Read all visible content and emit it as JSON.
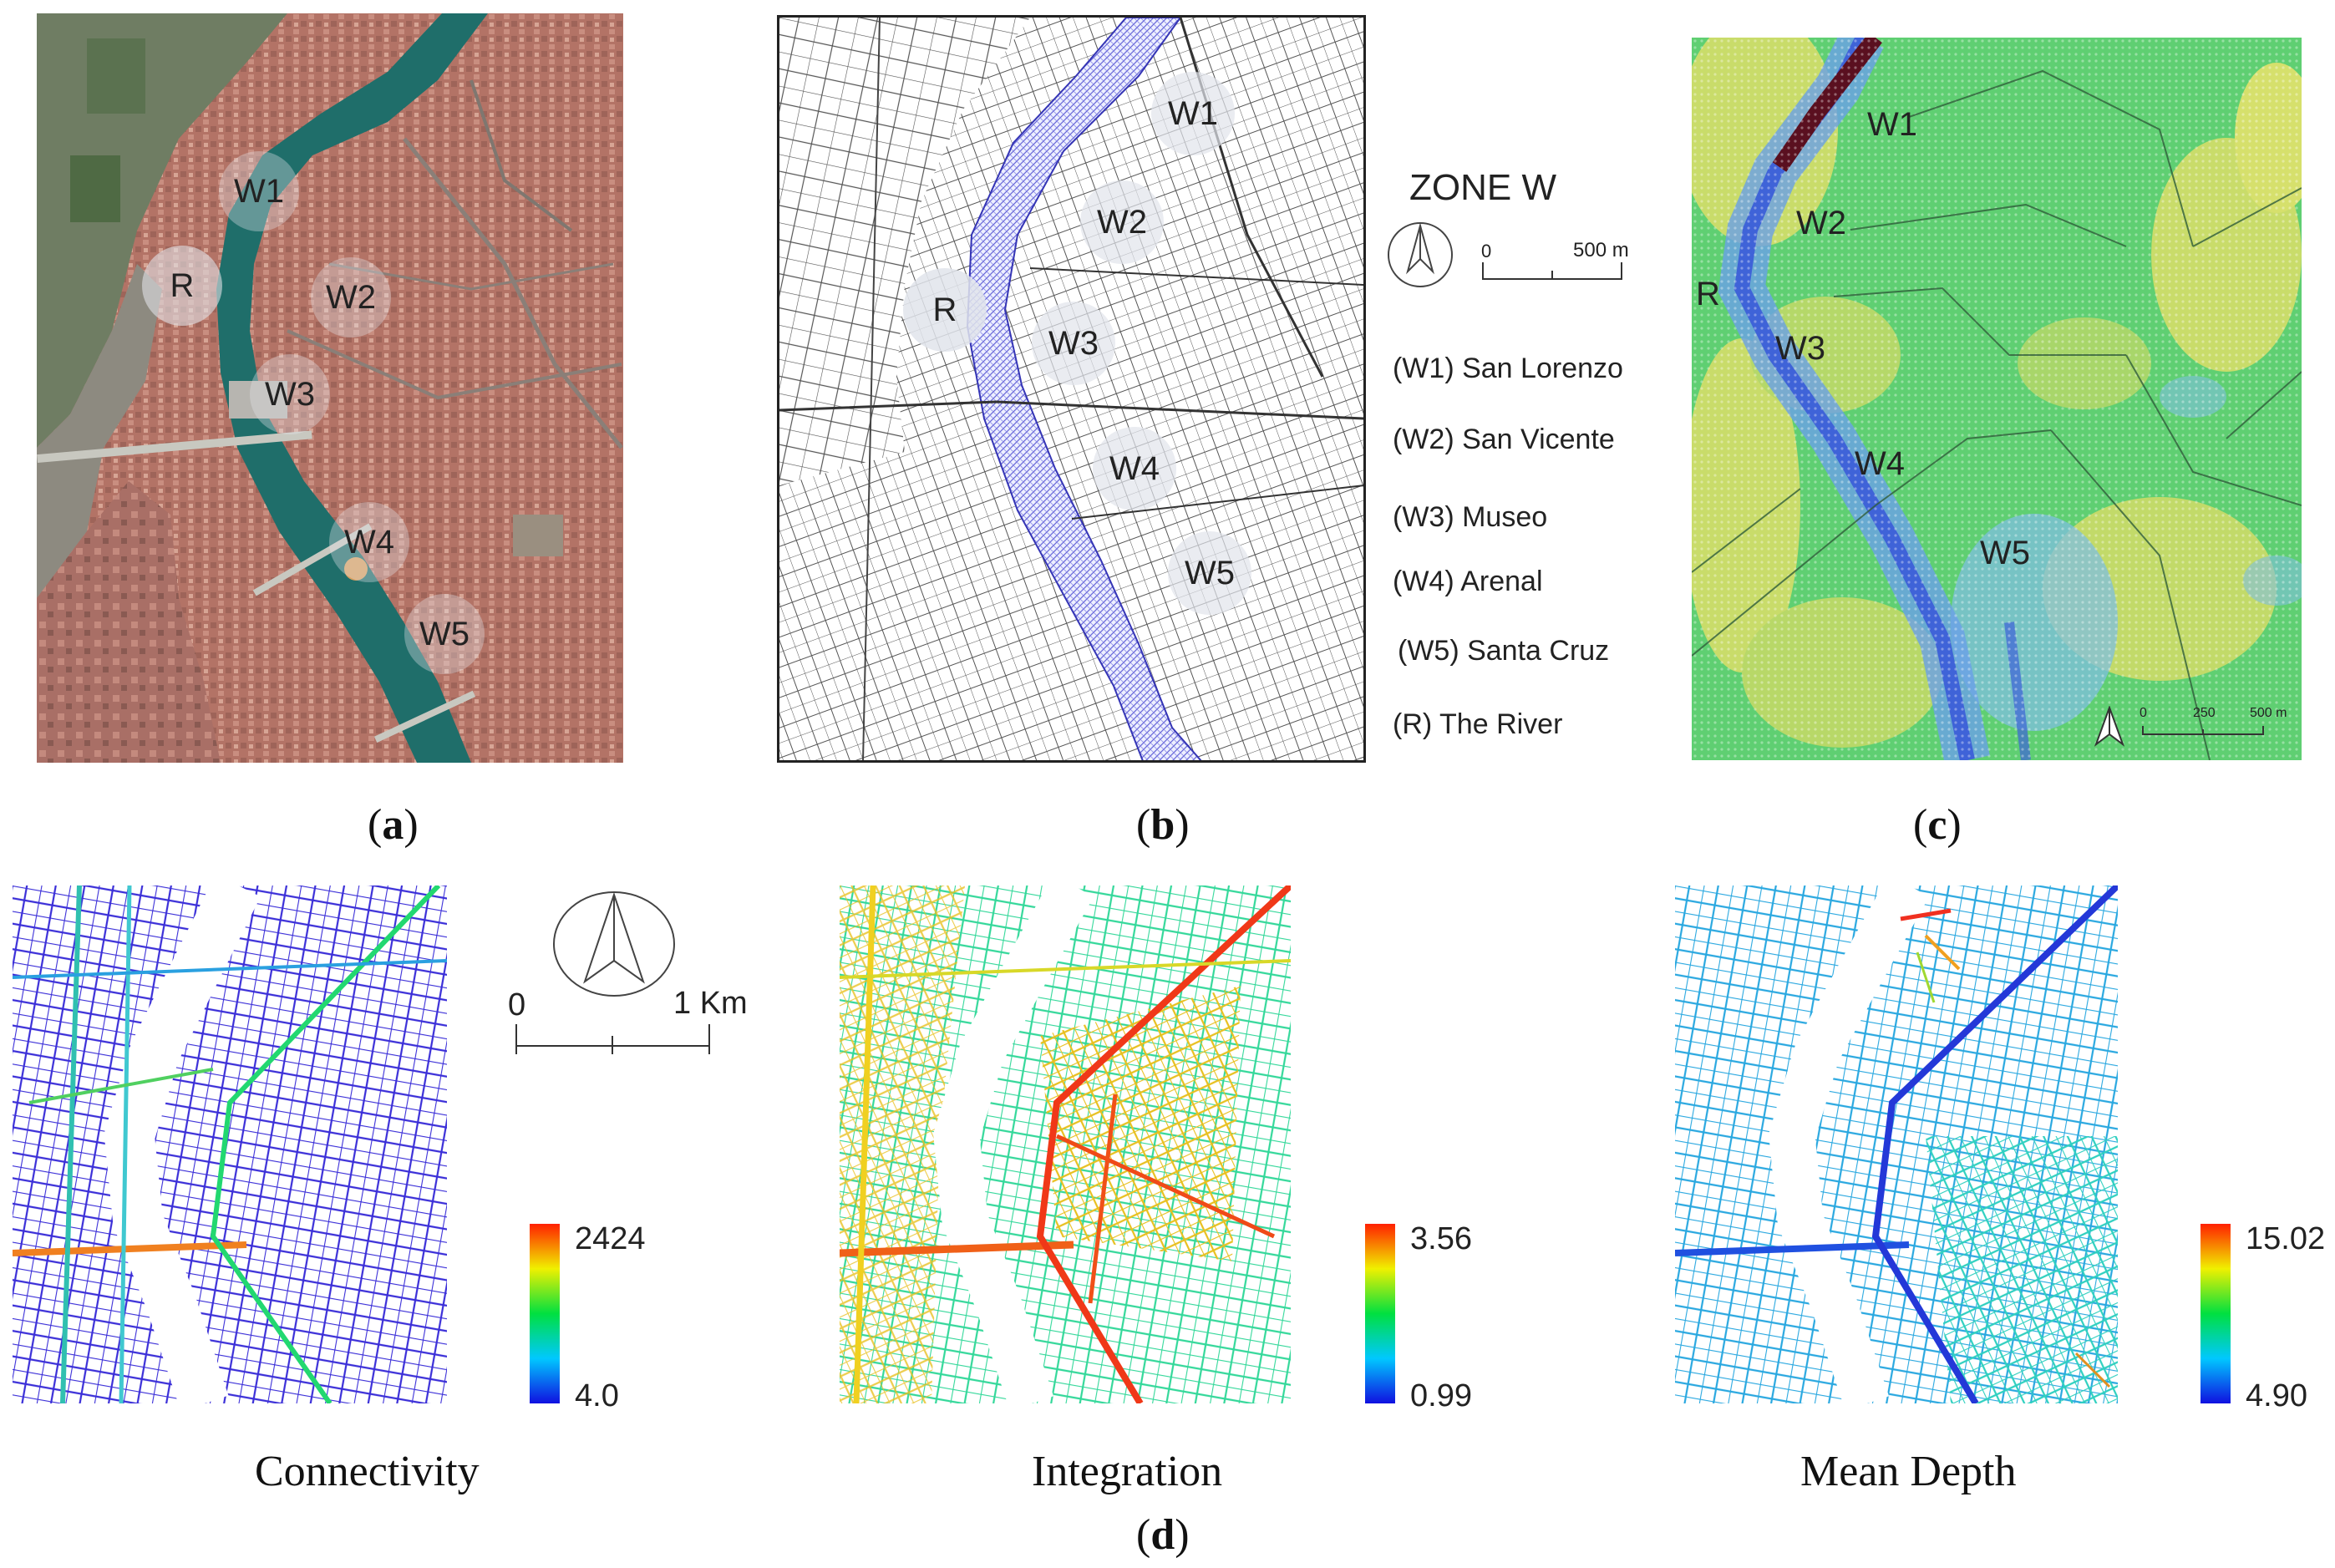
{
  "panels": {
    "a": {
      "caption_open": "(",
      "caption_letter": "a",
      "caption_close": ")"
    },
    "b": {
      "caption_open": "(",
      "caption_letter": "b",
      "caption_close": ")"
    },
    "c": {
      "caption_open": "(",
      "caption_letter": "c",
      "caption_close": ")"
    },
    "d": {
      "caption_open": "(",
      "caption_letter": "d",
      "caption_close": ")"
    }
  },
  "zone_labels": {
    "w1": "W1",
    "w2": "W2",
    "w3": "W3",
    "w4": "W4",
    "w5": "W5",
    "r": "R"
  },
  "legend": {
    "title": "ZONE W",
    "scale_zero": "0",
    "scale_end": "500 m",
    "items": [
      "(W1) San Lorenzo",
      "(W2) San Vicente",
      "(W3) Museo",
      "(W4) Arenal",
      "(W5)  Santa Cruz",
      "(R) The River"
    ]
  },
  "panel_c_scale": {
    "zero": "0",
    "mid": "250",
    "end": "500 m"
  },
  "panel_d_scale": {
    "zero": "0",
    "end": "1 Km"
  },
  "syntax_maps": [
    {
      "name": "Connectivity",
      "max": "2424",
      "min": "4.0"
    },
    {
      "name": "Integration",
      "max": "3.56",
      "min": "0.99"
    },
    {
      "name": "Mean Depth",
      "max": "15.02",
      "min": "4.90"
    }
  ],
  "colors": {
    "river_water": "#1f6e6a",
    "urban_roofs": "#b9756a",
    "river_hatch": "#7070e0",
    "heat_green": "#5fcf72",
    "heat_yellow": "#c9dc6a",
    "heat_blue": "#6aa0e8",
    "heat_dark": "#5a1020"
  }
}
